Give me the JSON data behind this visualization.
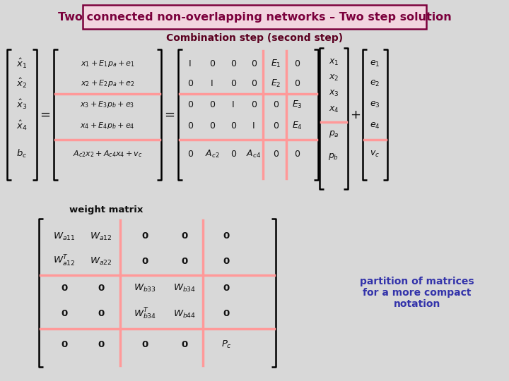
{
  "title": "Two connected non-overlapping networks – Two step solution",
  "title_color": "#7B003C",
  "title_bg": "#F2D5DF",
  "title_border": "#7B003C",
  "subtitle": "Combination step (second step)",
  "subtitle_color": "#5B0020",
  "bg_color": "#D8D8D8",
  "matrix_text_color": "#111111",
  "partition_color": "#FF9999",
  "blue_text_color": "#3333AA",
  "weight_label": "weight matrix",
  "partition_note": "partition of matrices\nfor a more compact\nnotation"
}
